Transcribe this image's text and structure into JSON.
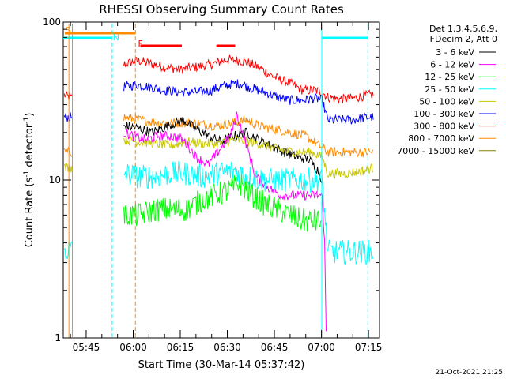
{
  "chart_data": {
    "type": "line",
    "title": "RHESSI Observing Summary Count Rates",
    "xlabel": "Start Time (30-Mar-14 05:37:42)",
    "ylabel": "Count Rate (s⁻¹ detector⁻¹)",
    "ylabel_base": "Count Rate (s",
    "ylabel_exp": "-1",
    "ylabel_mid": " detector",
    "ylabel_exp2": "-1",
    "ylabel_end": ")",
    "yscale": "log",
    "ylim": [
      1,
      100
    ],
    "y_ticks": [
      {
        "value": 1,
        "label": "1"
      },
      {
        "value": 10,
        "label": "10"
      },
      {
        "value": 100,
        "label": "100"
      }
    ],
    "xlim_minutes": [
      337.7,
      438.5
    ],
    "x_ticks": [
      {
        "value": 345,
        "label": "05:45"
      },
      {
        "value": 360,
        "label": "06:00"
      },
      {
        "value": 375,
        "label": "06:15"
      },
      {
        "value": 390,
        "label": "06:30"
      },
      {
        "value": 405,
        "label": "06:45"
      },
      {
        "value": 420,
        "label": "07:00"
      },
      {
        "value": 435,
        "label": "07:15"
      }
    ],
    "legend": {
      "placement": "right",
      "header": [
        "Det 1,3,4,5,6,9,",
        "FDecim 2, Att 0"
      ],
      "entries": [
        {
          "label": "3 - 6 keV",
          "color": "#000000"
        },
        {
          "label": "6 - 12 keV",
          "color": "#ff00ff"
        },
        {
          "label": "12 - 25 keV",
          "color": "#00ff00"
        },
        {
          "label": "25 - 50 keV",
          "color": "#00ffff"
        },
        {
          "label": "50 - 100 keV",
          "color": "#c8c800"
        },
        {
          "label": "100 - 300 keV",
          "color": "#0000ff"
        },
        {
          "label": "300 - 800 keV",
          "color": "#ff0000"
        },
        {
          "label": "800 - 7000 keV",
          "color": "#ff8c00"
        },
        {
          "label": "7000 - 15000 keV",
          "color": "#808000"
        }
      ]
    },
    "series": [
      {
        "name": "300 - 800 keV",
        "color": "#ff0000",
        "x": [
          338,
          339.5,
          340.5,
          357,
          361.5,
          365,
          370,
          375,
          380,
          385,
          390,
          394,
          397,
          400,
          403,
          406,
          410,
          414,
          418,
          420.2,
          422,
          426,
          430,
          435,
          436.5
        ],
        "y": [
          34.5,
          33.5,
          33,
          54,
          57,
          55,
          52,
          50,
          52,
          54,
          58,
          57,
          55,
          52,
          47,
          44,
          41,
          37,
          37,
          36,
          33.5,
          32.5,
          33,
          34.5,
          35
        ]
      },
      {
        "name": "100 - 300 keV",
        "color": "#0000ff",
        "x": [
          338,
          340.5,
          357,
          361.5,
          365,
          370,
          375,
          380,
          385,
          390,
          394,
          398,
          402,
          406,
          410,
          414,
          418,
          420.2,
          422,
          426,
          430,
          435,
          436.5
        ],
        "y": [
          25,
          25,
          39,
          40,
          39,
          37,
          36,
          36,
          37,
          40,
          41,
          38,
          36,
          33.5,
          32,
          32,
          33,
          32,
          24,
          24,
          24,
          25,
          25
        ]
      },
      {
        "name": "800 - 7000 keV",
        "color": "#ff8c00",
        "x": [
          338,
          340.5,
          357,
          362,
          368,
          374,
          380,
          386,
          392,
          396,
          400,
          405,
          410,
          415,
          420.2,
          422,
          428,
          434,
          436.5
        ],
        "y": [
          15,
          15,
          25,
          24,
          23,
          23,
          23,
          22,
          23,
          24,
          22,
          21,
          20,
          19,
          16,
          15,
          15,
          15,
          15
        ]
      },
      {
        "name": "3 - 6 keV",
        "color": "#000000",
        "x": [
          357,
          361,
          366,
          371,
          376,
          380,
          384,
          388,
          392,
          396,
          400,
          404,
          408,
          412,
          416,
          419,
          420.2
        ],
        "y": [
          22,
          21.5,
          20,
          22,
          24,
          21,
          19,
          17.5,
          19,
          20,
          18,
          16.5,
          15,
          14,
          13.5,
          11.5,
          10
        ]
      },
      {
        "name": "50 - 100 keV",
        "color": "#c8c800",
        "x": [
          338,
          340.5,
          357,
          362,
          367,
          372,
          377,
          382,
          388,
          392,
          397,
          402,
          407,
          412,
          417,
          420.2,
          422,
          428,
          434,
          436.5
        ],
        "y": [
          12,
          12,
          18,
          17.5,
          17,
          16.5,
          17.5,
          17,
          17,
          18,
          17.5,
          16.5,
          15.5,
          15,
          15,
          14,
          11,
          11,
          11.5,
          12
        ]
      },
      {
        "name": "6 - 12 keV",
        "color": "#ff00ff",
        "x": [
          357,
          360,
          364,
          368,
          372,
          376,
          380,
          384,
          388,
          391,
          393,
          396,
          399,
          403,
          407,
          411,
          415,
          419,
          420.2,
          421,
          421.5
        ],
        "y": [
          20,
          19,
          18,
          19,
          19,
          18,
          14,
          12.5,
          16,
          19,
          26,
          17,
          10.5,
          9,
          8,
          8,
          8,
          8,
          8,
          4,
          1.1
        ]
      },
      {
        "name": "25 - 50 keV",
        "color": "#00ffff",
        "x": [
          338,
          340.5,
          357,
          362,
          367,
          372,
          377,
          382,
          387,
          392,
          397,
          402,
          407,
          412,
          417,
          420.2,
          422,
          428,
          434,
          436.5
        ],
        "y": [
          3.6,
          3.6,
          11,
          10.5,
          10.5,
          11,
          11,
          10.5,
          11,
          11.5,
          10.5,
          10,
          10,
          10,
          10,
          10,
          3.5,
          3.5,
          3.5,
          3.5
        ]
      },
      {
        "name": "12 - 25 keV",
        "color": "#00ff00",
        "x": [
          357,
          362,
          367,
          372,
          377,
          382,
          386,
          390,
          394,
          398,
          402,
          406,
          410,
          414,
          418,
          420.2
        ],
        "y": [
          6,
          6,
          6.5,
          6.5,
          6.5,
          7.5,
          8,
          8.5,
          9.5,
          8,
          7,
          6.5,
          6,
          5.5,
          5.5,
          5.5
        ]
      }
    ],
    "annotations": [
      {
        "label": "S",
        "color": "#ff8c00",
        "x": 338.4
      },
      {
        "label": "N",
        "color": "#00ffff",
        "x": 353.5
      },
      {
        "label": "F",
        "color": "#ff0000",
        "x": 361.5
      }
    ],
    "state_bars": [
      {
        "color": "#00ffff",
        "x0": 337.7,
        "x1": 353.3
      },
      {
        "color": "#ff8c00",
        "x0": 338.2,
        "x1": 360.7
      },
      {
        "color": "#00ffff",
        "x0": 420.0,
        "x1": 434.8
      },
      {
        "color": "#ff0000",
        "x0": 362.3,
        "x1": 375.5
      },
      {
        "color": "#ff0000",
        "x0": 386.5,
        "x1": 392.5
      }
    ],
    "vlines": [
      {
        "x": 339.5,
        "color": "#ff8c00",
        "dash": false
      },
      {
        "x": 340.6,
        "color": "#ff8c00",
        "dash": false
      },
      {
        "x": 353.3,
        "color": "#00ffff",
        "dash": true
      },
      {
        "x": 360.7,
        "color": "#ff8c00",
        "dash": true
      },
      {
        "x": 420.1,
        "color": "#00ffff",
        "dash": false
      },
      {
        "x": 434.8,
        "color": "#00ffff",
        "dash": true
      }
    ]
  },
  "footer": {
    "date": "21-Oct-2021 21:25"
  }
}
